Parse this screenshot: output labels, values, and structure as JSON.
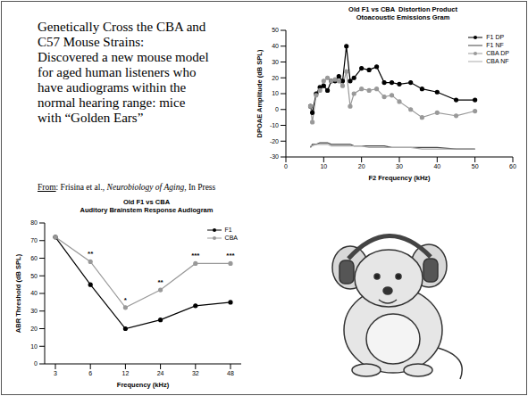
{
  "text_lines": [
    "Genetically Cross the CBA and",
    "C57 Mouse Strains:",
    "Discovered a new mouse model",
    "for aged human listeners who",
    "have audiograms within the",
    "normal hearing range: mice",
    "with “Golden Ears”"
  ],
  "citation": [
    "From",
    ": Frisina et al., ",
    "Neurobiology of Aging",
    ", In Press"
  ],
  "chart_data": [
    {
      "type": "line",
      "title": [
        "Old F1 vs CBA  Distortion Product",
        "Otoacoustic Emissions Gram"
      ],
      "x_label": "F2 Frequency (kHz)",
      "y_label": "DPOAE Amplitude (dB SPL)",
      "x": [
        6.5,
        7,
        8,
        9,
        10,
        11,
        12,
        13,
        14,
        15,
        16,
        17,
        18,
        20,
        22,
        24,
        26,
        28,
        30,
        33,
        36,
        40,
        45,
        50
      ],
      "series": [
        {
          "name": "F1 DP",
          "color": "#000000",
          "marker": "circle",
          "line_style": "solid",
          "values": [
            2,
            -2,
            10,
            14,
            15,
            12,
            18,
            18,
            21,
            18,
            40,
            18,
            20,
            26,
            25,
            27,
            17,
            17,
            16,
            17,
            13,
            11,
            6,
            6
          ]
        },
        {
          "name": "F1 NF",
          "color": "#444444",
          "line_style": "solid",
          "values": [
            -24,
            -22,
            -22,
            -21,
            -21,
            -21,
            -22,
            -22,
            -22,
            -22,
            -22,
            -22,
            -23,
            -23,
            -23,
            -23,
            -23,
            -24,
            -24,
            -24,
            -24,
            -24,
            -25,
            -25
          ]
        },
        {
          "name": "CBA DP",
          "color": "#999999",
          "marker": "circle",
          "line_style": "solid",
          "values": [
            2,
            -8,
            9,
            12,
            18,
            20,
            18,
            19,
            18,
            15,
            24,
            2,
            10,
            13,
            12,
            13,
            8,
            9,
            5,
            0,
            -5,
            -2,
            -4,
            -1
          ]
        },
        {
          "name": "CBA NF",
          "color": "#aaaaaa",
          "line_style": "solid",
          "values": [
            -23,
            -23,
            -22,
            -22,
            -22,
            -22,
            -23,
            -23,
            -23,
            -23,
            -23,
            -23,
            -23,
            -23,
            -24,
            -24,
            -24,
            -24,
            -24,
            -24,
            -25,
            -25,
            -25,
            -25
          ]
        }
      ],
      "xlim": [
        0,
        60
      ],
      "xticks": [
        0,
        10,
        20,
        30,
        40,
        50,
        60
      ],
      "ylim": [
        -30,
        50
      ],
      "yticks": [
        -30,
        -20,
        -10,
        0,
        10,
        20,
        30,
        40,
        50
      ],
      "grid": false,
      "legend": "upper right"
    },
    {
      "type": "line",
      "title": [
        "Old F1 vs CBA",
        "Auditory Brainstem Response Audiogram"
      ],
      "x_label": "Frequency (kHz)",
      "y_label": "ABR Threshold (dB SPL)",
      "categories": [
        "3",
        "6",
        "12",
        "24",
        "32",
        "48"
      ],
      "series": [
        {
          "name": "F1",
          "color": "#000000",
          "marker": "circle",
          "line_style": "solid",
          "values": [
            72,
            45,
            20,
            25,
            33,
            35
          ]
        },
        {
          "name": "CBA",
          "color": "#999999",
          "marker": "circle",
          "line_style": "solid",
          "values": [
            72,
            58,
            32,
            42,
            57,
            57
          ]
        }
      ],
      "significance": [
        null,
        "**",
        "*",
        "**",
        "***",
        "***"
      ],
      "ylim": [
        0,
        80
      ],
      "yticks": [
        0,
        10,
        20,
        30,
        40,
        50,
        60,
        70,
        80
      ],
      "grid": false,
      "legend": "upper right"
    }
  ]
}
